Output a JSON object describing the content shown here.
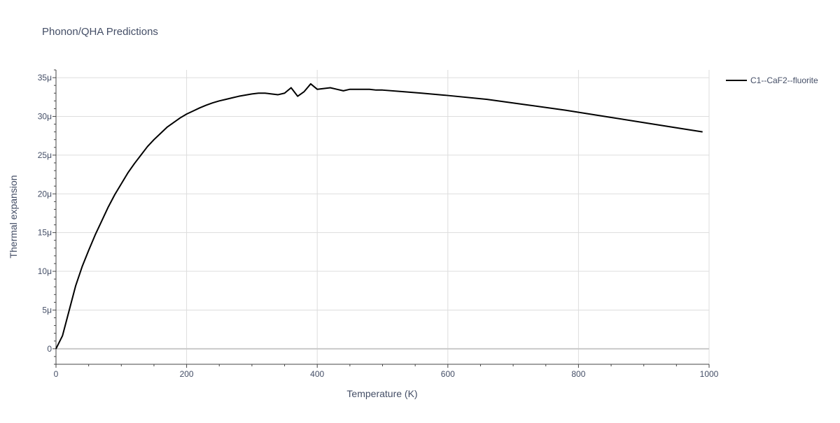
{
  "chart_data": {
    "type": "line",
    "title": "Phonon/QHA Predictions",
    "xlabel": "Temperature (K)",
    "ylabel": "Thermal expansion",
    "xlim": [
      0,
      1000
    ],
    "ylim": [
      -2e-06,
      3.6e-05
    ],
    "x_ticks": [
      {
        "value": 0,
        "label": "0"
      },
      {
        "value": 200,
        "label": "200"
      },
      {
        "value": 400,
        "label": "400"
      },
      {
        "value": 600,
        "label": "600"
      },
      {
        "value": 800,
        "label": "800"
      },
      {
        "value": 1000,
        "label": "1000"
      }
    ],
    "y_ticks": [
      {
        "value": 0,
        "label": "0"
      },
      {
        "value": 5e-06,
        "label": "5μ"
      },
      {
        "value": 1e-05,
        "label": "10μ"
      },
      {
        "value": 1.5e-05,
        "label": "15μ"
      },
      {
        "value": 2e-05,
        "label": "20μ"
      },
      {
        "value": 2.5e-05,
        "label": "25μ"
      },
      {
        "value": 3e-05,
        "label": "30μ"
      },
      {
        "value": 3.5e-05,
        "label": "35μ"
      }
    ],
    "grid": true,
    "legend_position": "top-right",
    "series": [
      {
        "name": "C1--CaF2--fluorite",
        "color": "#000000",
        "x": [
          0,
          10,
          20,
          30,
          40,
          50,
          60,
          70,
          80,
          90,
          100,
          110,
          120,
          130,
          140,
          150,
          160,
          170,
          180,
          190,
          200,
          210,
          220,
          230,
          240,
          250,
          260,
          270,
          280,
          290,
          300,
          310,
          320,
          330,
          340,
          350,
          360,
          370,
          380,
          390,
          400,
          410,
          420,
          430,
          440,
          450,
          460,
          470,
          480,
          490,
          500,
          530,
          560,
          600,
          660,
          720,
          780,
          840,
          900,
          960,
          990
        ],
        "y": [
          0,
          1.7e-06,
          4.9e-06,
          8.1e-06,
          1.06e-05,
          1.27e-05,
          1.47e-05,
          1.65e-05,
          1.83e-05,
          1.99e-05,
          2.13e-05,
          2.27e-05,
          2.39e-05,
          2.5e-05,
          2.61e-05,
          2.7e-05,
          2.78e-05,
          2.86e-05,
          2.92e-05,
          2.98e-05,
          3.03e-05,
          3.07e-05,
          3.11e-05,
          3.145e-05,
          3.175e-05,
          3.2e-05,
          3.22e-05,
          3.24e-05,
          3.26e-05,
          3.275e-05,
          3.29e-05,
          3.3e-05,
          3.3e-05,
          3.29e-05,
          3.28e-05,
          3.3e-05,
          3.37e-05,
          3.26e-05,
          3.32e-05,
          3.42e-05,
          3.35e-05,
          3.36e-05,
          3.37e-05,
          3.35e-05,
          3.33e-05,
          3.35e-05,
          3.35e-05,
          3.35e-05,
          3.35e-05,
          3.34e-05,
          3.34e-05,
          3.32e-05,
          3.3e-05,
          3.27e-05,
          3.22e-05,
          3.15e-05,
          3.08e-05,
          3e-05,
          2.92e-05,
          2.84e-05,
          2.8e-05
        ]
      }
    ]
  },
  "colors": {
    "grid": "#dddddd",
    "zero_line": "#c9c9c9",
    "axis_line": "#444444",
    "text": "#444e66"
  }
}
